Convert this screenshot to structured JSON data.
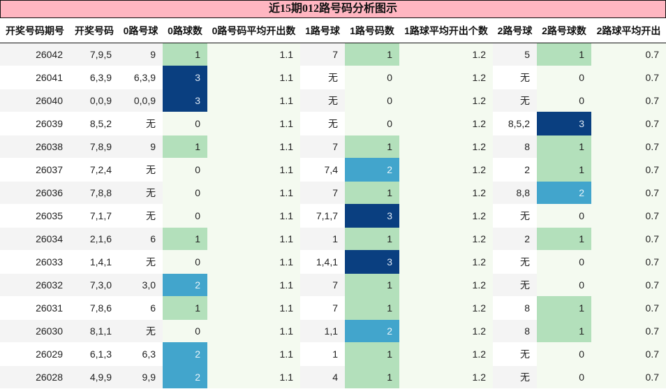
{
  "title": "近15期012路号码分析图示",
  "colors": {
    "title_bg": "#ffb6c1",
    "count_0": "#f4faf0",
    "count_1": "#b3e0bb",
    "count_2": "#42a5cc",
    "count_3": "#0a3f80",
    "avg_bg": "#f4faf0",
    "row_alt": "#f4f4f4"
  },
  "columns": [
    "开奖号码期号",
    "开奖号码",
    "0路号球",
    "0路球数",
    "0路号码平均开出数",
    "1路号球",
    "1路号码数",
    "1路球平均开出个数",
    "2路号球",
    "2路号球数",
    "2路球平均开出"
  ],
  "rows": [
    {
      "period": "26042",
      "draw": "7,9,5",
      "r0_balls": "9",
      "r0_count": "1",
      "r0_avg": "1.1",
      "r1_balls": "7",
      "r1_count": "1",
      "r1_avg": "1.2",
      "r2_balls": "5",
      "r2_count": "1",
      "r2_avg": "0.7"
    },
    {
      "period": "26041",
      "draw": "6,3,9",
      "r0_balls": "6,3,9",
      "r0_count": "3",
      "r0_avg": "1.1",
      "r1_balls": "无",
      "r1_count": "0",
      "r1_avg": "1.2",
      "r2_balls": "无",
      "r2_count": "0",
      "r2_avg": "0.7"
    },
    {
      "period": "26040",
      "draw": "0,0,9",
      "r0_balls": "0,0,9",
      "r0_count": "3",
      "r0_avg": "1.1",
      "r1_balls": "无",
      "r1_count": "0",
      "r1_avg": "1.2",
      "r2_balls": "无",
      "r2_count": "0",
      "r2_avg": "0.7"
    },
    {
      "period": "26039",
      "draw": "8,5,2",
      "r0_balls": "无",
      "r0_count": "0",
      "r0_avg": "1.1",
      "r1_balls": "无",
      "r1_count": "0",
      "r1_avg": "1.2",
      "r2_balls": "8,5,2",
      "r2_count": "3",
      "r2_avg": "0.7"
    },
    {
      "period": "26038",
      "draw": "7,8,9",
      "r0_balls": "9",
      "r0_count": "1",
      "r0_avg": "1.1",
      "r1_balls": "7",
      "r1_count": "1",
      "r1_avg": "1.2",
      "r2_balls": "8",
      "r2_count": "1",
      "r2_avg": "0.7"
    },
    {
      "period": "26037",
      "draw": "7,2,4",
      "r0_balls": "无",
      "r0_count": "0",
      "r0_avg": "1.1",
      "r1_balls": "7,4",
      "r1_count": "2",
      "r1_avg": "1.2",
      "r2_balls": "2",
      "r2_count": "1",
      "r2_avg": "0.7"
    },
    {
      "period": "26036",
      "draw": "7,8,8",
      "r0_balls": "无",
      "r0_count": "0",
      "r0_avg": "1.1",
      "r1_balls": "7",
      "r1_count": "1",
      "r1_avg": "1.2",
      "r2_balls": "8,8",
      "r2_count": "2",
      "r2_avg": "0.7"
    },
    {
      "period": "26035",
      "draw": "7,1,7",
      "r0_balls": "无",
      "r0_count": "0",
      "r0_avg": "1.1",
      "r1_balls": "7,1,7",
      "r1_count": "3",
      "r1_avg": "1.2",
      "r2_balls": "无",
      "r2_count": "0",
      "r2_avg": "0.7"
    },
    {
      "period": "26034",
      "draw": "2,1,6",
      "r0_balls": "6",
      "r0_count": "1",
      "r0_avg": "1.1",
      "r1_balls": "1",
      "r1_count": "1",
      "r1_avg": "1.2",
      "r2_balls": "2",
      "r2_count": "1",
      "r2_avg": "0.7"
    },
    {
      "period": "26033",
      "draw": "1,4,1",
      "r0_balls": "无",
      "r0_count": "0",
      "r0_avg": "1.1",
      "r1_balls": "1,4,1",
      "r1_count": "3",
      "r1_avg": "1.2",
      "r2_balls": "无",
      "r2_count": "0",
      "r2_avg": "0.7"
    },
    {
      "period": "26032",
      "draw": "7,3,0",
      "r0_balls": "3,0",
      "r0_count": "2",
      "r0_avg": "1.1",
      "r1_balls": "7",
      "r1_count": "1",
      "r1_avg": "1.2",
      "r2_balls": "无",
      "r2_count": "0",
      "r2_avg": "0.7"
    },
    {
      "period": "26031",
      "draw": "7,8,6",
      "r0_balls": "6",
      "r0_count": "1",
      "r0_avg": "1.1",
      "r1_balls": "7",
      "r1_count": "1",
      "r1_avg": "1.2",
      "r2_balls": "8",
      "r2_count": "1",
      "r2_avg": "0.7"
    },
    {
      "period": "26030",
      "draw": "8,1,1",
      "r0_balls": "无",
      "r0_count": "0",
      "r0_avg": "1.1",
      "r1_balls": "1,1",
      "r1_count": "2",
      "r1_avg": "1.2",
      "r2_balls": "8",
      "r2_count": "1",
      "r2_avg": "0.7"
    },
    {
      "period": "26029",
      "draw": "6,1,3",
      "r0_balls": "6,3",
      "r0_count": "2",
      "r0_avg": "1.1",
      "r1_balls": "1",
      "r1_count": "1",
      "r1_avg": "1.2",
      "r2_balls": "无",
      "r2_count": "0",
      "r2_avg": "0.7"
    },
    {
      "period": "26028",
      "draw": "4,9,9",
      "r0_balls": "9,9",
      "r0_count": "2",
      "r0_avg": "1.1",
      "r1_balls": "4",
      "r1_count": "1",
      "r1_avg": "1.2",
      "r2_balls": "无",
      "r2_count": "0",
      "r2_avg": "0.7"
    }
  ],
  "chart_data": {
    "type": "table",
    "title": "近15期012路号码分析图示",
    "columns": [
      "开奖号码期号",
      "开奖号码",
      "0路号球",
      "0路球数",
      "0路号码平均开出数",
      "1路号球",
      "1路号码数",
      "1路球平均开出个数",
      "2路号球",
      "2路号球数",
      "2路球平均开出"
    ],
    "categories": [
      "26042",
      "26041",
      "26040",
      "26039",
      "26038",
      "26037",
      "26036",
      "26035",
      "26034",
      "26033",
      "26032",
      "26031",
      "26030",
      "26029",
      "26028"
    ],
    "series": [
      {
        "name": "0路球数",
        "values": [
          1,
          3,
          3,
          0,
          1,
          0,
          0,
          0,
          1,
          0,
          2,
          1,
          0,
          2,
          2
        ]
      },
      {
        "name": "1路号码数",
        "values": [
          1,
          0,
          0,
          0,
          1,
          2,
          1,
          3,
          1,
          3,
          1,
          1,
          2,
          1,
          1
        ]
      },
      {
        "name": "2路号球数",
        "values": [
          1,
          0,
          0,
          3,
          1,
          1,
          2,
          0,
          1,
          0,
          0,
          1,
          1,
          0,
          0
        ]
      },
      {
        "name": "0路号码平均开出数",
        "values": [
          1.1,
          1.1,
          1.1,
          1.1,
          1.1,
          1.1,
          1.1,
          1.1,
          1.1,
          1.1,
          1.1,
          1.1,
          1.1,
          1.1,
          1.1
        ]
      },
      {
        "name": "1路球平均开出个数",
        "values": [
          1.2,
          1.2,
          1.2,
          1.2,
          1.2,
          1.2,
          1.2,
          1.2,
          1.2,
          1.2,
          1.2,
          1.2,
          1.2,
          1.2,
          1.2
        ]
      },
      {
        "name": "2路球平均开出",
        "values": [
          0.7,
          0.7,
          0.7,
          0.7,
          0.7,
          0.7,
          0.7,
          0.7,
          0.7,
          0.7,
          0.7,
          0.7,
          0.7,
          0.7,
          0.7
        ]
      }
    ],
    "draws": [
      "7,9,5",
      "6,3,9",
      "0,0,9",
      "8,5,2",
      "7,8,9",
      "7,2,4",
      "7,8,8",
      "7,1,7",
      "2,1,6",
      "1,4,1",
      "7,3,0",
      "7,8,6",
      "8,1,1",
      "6,1,3",
      "4,9,9"
    ],
    "color_scale": {
      "0": "#f4faf0",
      "1": "#b3e0bb",
      "2": "#42a5cc",
      "3": "#0a3f80"
    }
  }
}
